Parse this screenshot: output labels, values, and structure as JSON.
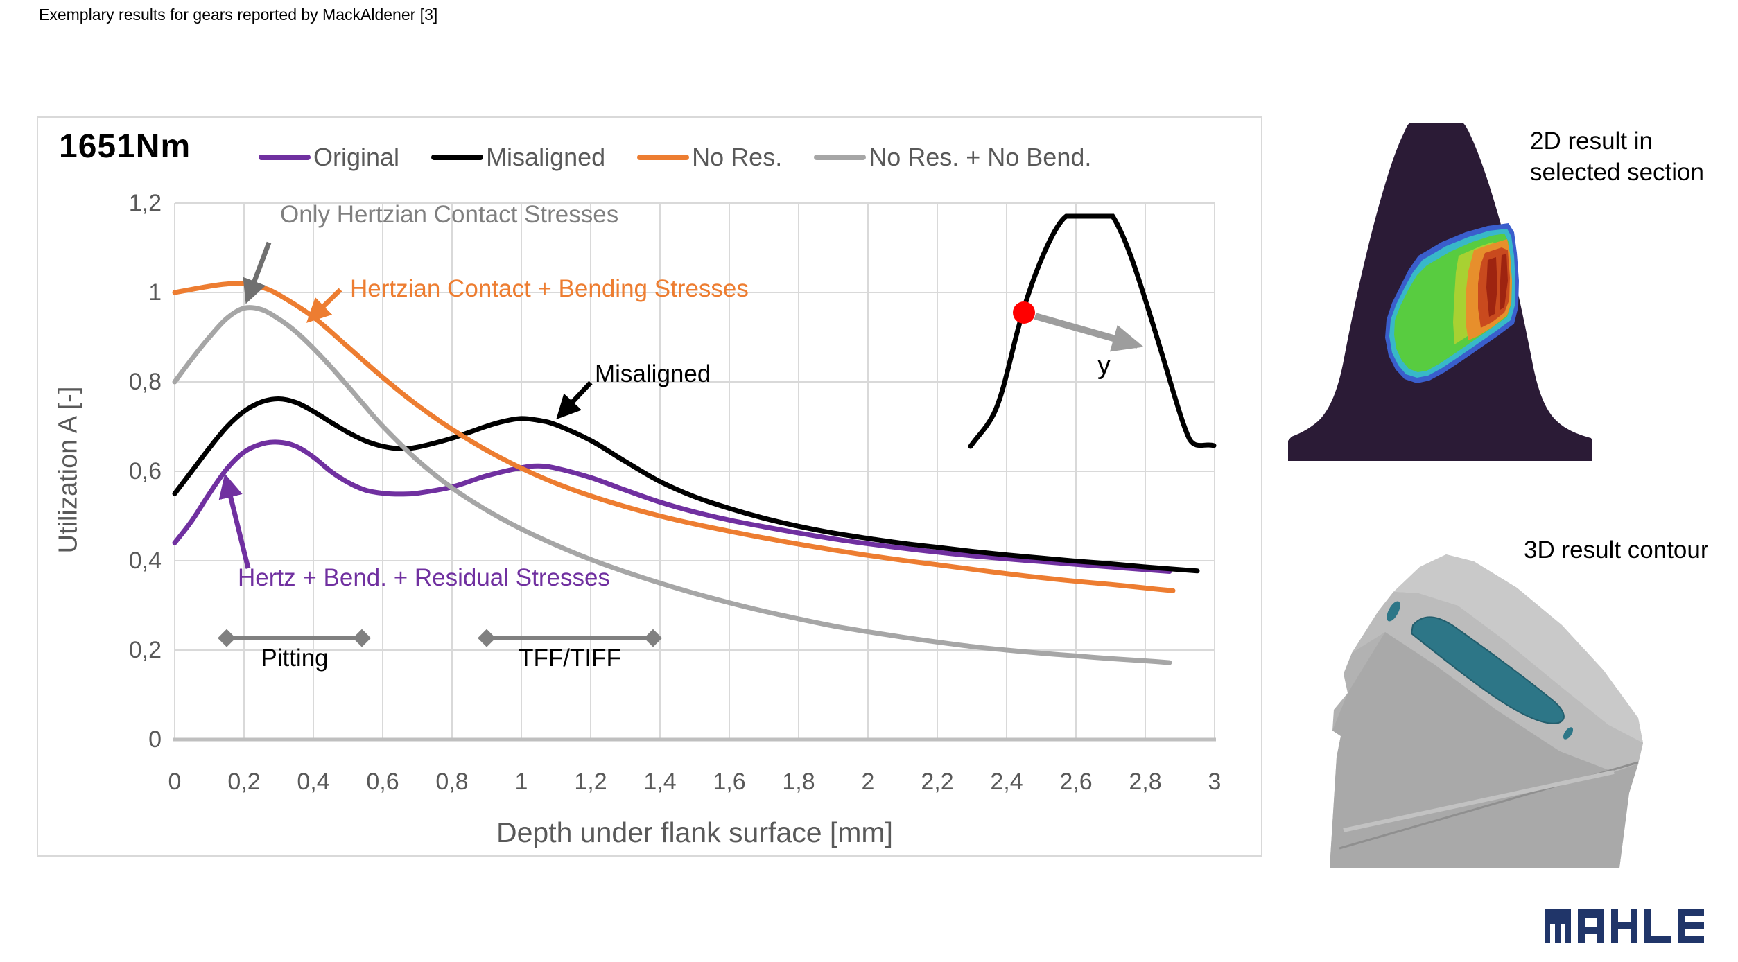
{
  "page": {
    "title": "Exemplary results for gears reported by MackAldener [3]"
  },
  "chart": {
    "title": "1651Nm",
    "legend": [
      {
        "label": "Original",
        "color": "#7030A0"
      },
      {
        "label": "Misaligned",
        "color": "#000000"
      },
      {
        "label": "No Res.",
        "color": "#ED7D31"
      },
      {
        "label": "No Res. + No Bend.",
        "color": "#A6A6A6"
      }
    ],
    "y_axis": {
      "title": "Utilization A [-]",
      "ticks": [
        "1,2",
        "1",
        "0,8",
        "0,6",
        "0,4",
        "0,2",
        "0"
      ],
      "values": [
        1.2,
        1.0,
        0.8,
        0.6,
        0.4,
        0.2,
        0
      ]
    },
    "x_axis": {
      "title": "Depth under flank surface [mm]",
      "ticks": [
        "0",
        "0,2",
        "0,4",
        "0,6",
        "0,8",
        "1",
        "1,2",
        "1,4",
        "1,6",
        "1,8",
        "2",
        "2,2",
        "2,4",
        "2,6",
        "2,8",
        "3"
      ],
      "values": [
        0,
        0.2,
        0.4,
        0.6,
        0.8,
        1,
        1.2,
        1.4,
        1.6,
        1.8,
        2,
        2.2,
        2.4,
        2.6,
        2.8,
        3
      ]
    },
    "annotations": {
      "only_hertzian": "Only Hertzian Contact Stresses",
      "hertzian_bending": "Hertzian Contact + Bending Stresses",
      "misaligned": "Misaligned",
      "hertz_bend_residual": "Hertz + Bend. + Residual Stresses"
    },
    "ranges": [
      {
        "label": "Pitting",
        "from": 0.15,
        "to": 0.54,
        "y": 0.227
      },
      {
        "label": "TFF/TIFF",
        "from": 0.9,
        "to": 1.38,
        "y": 0.227
      }
    ],
    "sketch": {
      "point_label": "y",
      "dot_color": "#FF0000"
    }
  },
  "panels": {
    "p2d": {
      "caption_line1": "2D result in",
      "caption_line2": "selected section"
    },
    "p3d": {
      "caption": "3D result contour"
    }
  },
  "logo": {
    "text": "MAHLE",
    "color": "#203569"
  },
  "chart_data": {
    "type": "line",
    "title": "1651Nm",
    "xlabel": "Depth under flank surface [mm]",
    "ylabel": "Utilization A [-]",
    "xlim": [
      0,
      3
    ],
    "ylim": [
      0,
      1.2
    ],
    "grid": true,
    "legend_position": "top",
    "series": [
      {
        "name": "Original",
        "color": "#7030A0",
        "points": [
          [
            0,
            0.44
          ],
          [
            0.05,
            0.49
          ],
          [
            0.1,
            0.55
          ],
          [
            0.15,
            0.605
          ],
          [
            0.2,
            0.643
          ],
          [
            0.25,
            0.661
          ],
          [
            0.3,
            0.665
          ],
          [
            0.35,
            0.656
          ],
          [
            0.4,
            0.632
          ],
          [
            0.45,
            0.6
          ],
          [
            0.5,
            0.575
          ],
          [
            0.55,
            0.558
          ],
          [
            0.6,
            0.551
          ],
          [
            0.65,
            0.549
          ],
          [
            0.7,
            0.551
          ],
          [
            0.8,
            0.565
          ],
          [
            0.9,
            0.59
          ],
          [
            1.0,
            0.608
          ],
          [
            1.05,
            0.612
          ],
          [
            1.1,
            0.607
          ],
          [
            1.2,
            0.586
          ],
          [
            1.3,
            0.558
          ],
          [
            1.4,
            0.531
          ],
          [
            1.5,
            0.509
          ],
          [
            1.6,
            0.491
          ],
          [
            1.7,
            0.476
          ],
          [
            1.8,
            0.462
          ],
          [
            1.9,
            0.449
          ],
          [
            2.0,
            0.438
          ],
          [
            2.1,
            0.428
          ],
          [
            2.2,
            0.419
          ],
          [
            2.3,
            0.411
          ],
          [
            2.4,
            0.404
          ],
          [
            2.5,
            0.398
          ],
          [
            2.6,
            0.392
          ],
          [
            2.7,
            0.386
          ],
          [
            2.8,
            0.38
          ],
          [
            2.87,
            0.376
          ]
        ]
      },
      {
        "name": "Misaligned",
        "color": "#000000",
        "points": [
          [
            0,
            0.55
          ],
          [
            0.05,
            0.601
          ],
          [
            0.1,
            0.652
          ],
          [
            0.15,
            0.699
          ],
          [
            0.2,
            0.734
          ],
          [
            0.25,
            0.755
          ],
          [
            0.3,
            0.762
          ],
          [
            0.35,
            0.754
          ],
          [
            0.4,
            0.734
          ],
          [
            0.45,
            0.71
          ],
          [
            0.5,
            0.687
          ],
          [
            0.55,
            0.668
          ],
          [
            0.6,
            0.656
          ],
          [
            0.65,
            0.651
          ],
          [
            0.7,
            0.654
          ],
          [
            0.8,
            0.674
          ],
          [
            0.9,
            0.701
          ],
          [
            0.95,
            0.712
          ],
          [
            1.0,
            0.718
          ],
          [
            1.05,
            0.714
          ],
          [
            1.1,
            0.704
          ],
          [
            1.2,
            0.669
          ],
          [
            1.3,
            0.622
          ],
          [
            1.4,
            0.577
          ],
          [
            1.5,
            0.543
          ],
          [
            1.6,
            0.517
          ],
          [
            1.7,
            0.495
          ],
          [
            1.8,
            0.477
          ],
          [
            1.9,
            0.462
          ],
          [
            2.0,
            0.45
          ],
          [
            2.1,
            0.439
          ],
          [
            2.2,
            0.43
          ],
          [
            2.3,
            0.421
          ],
          [
            2.4,
            0.413
          ],
          [
            2.5,
            0.406
          ],
          [
            2.6,
            0.399
          ],
          [
            2.7,
            0.393
          ],
          [
            2.8,
            0.386
          ],
          [
            2.9,
            0.38
          ],
          [
            2.95,
            0.377
          ]
        ]
      },
      {
        "name": "No Res.",
        "color": "#ED7D31",
        "points": [
          [
            0,
            1.0
          ],
          [
            0.1,
            1.014
          ],
          [
            0.15,
            1.019
          ],
          [
            0.2,
            1.02
          ],
          [
            0.25,
            1.012
          ],
          [
            0.3,
            0.995
          ],
          [
            0.4,
            0.945
          ],
          [
            0.5,
            0.878
          ],
          [
            0.6,
            0.81
          ],
          [
            0.7,
            0.748
          ],
          [
            0.8,
            0.694
          ],
          [
            0.9,
            0.647
          ],
          [
            1.0,
            0.607
          ],
          [
            1.1,
            0.573
          ],
          [
            1.2,
            0.545
          ],
          [
            1.3,
            0.521
          ],
          [
            1.4,
            0.5
          ],
          [
            1.5,
            0.482
          ],
          [
            1.6,
            0.466
          ],
          [
            1.7,
            0.451
          ],
          [
            1.8,
            0.437
          ],
          [
            1.9,
            0.424
          ],
          [
            2.0,
            0.412
          ],
          [
            2.1,
            0.401
          ],
          [
            2.2,
            0.391
          ],
          [
            2.3,
            0.381
          ],
          [
            2.4,
            0.371
          ],
          [
            2.5,
            0.362
          ],
          [
            2.6,
            0.354
          ],
          [
            2.7,
            0.347
          ],
          [
            2.8,
            0.339
          ],
          [
            2.88,
            0.333
          ]
        ]
      },
      {
        "name": "No Res. + No Bend.",
        "color": "#A6A6A6",
        "points": [
          [
            0,
            0.8
          ],
          [
            0.05,
            0.852
          ],
          [
            0.1,
            0.9
          ],
          [
            0.15,
            0.942
          ],
          [
            0.2,
            0.965
          ],
          [
            0.25,
            0.962
          ],
          [
            0.3,
            0.941
          ],
          [
            0.35,
            0.912
          ],
          [
            0.4,
            0.875
          ],
          [
            0.45,
            0.834
          ],
          [
            0.5,
            0.79
          ],
          [
            0.55,
            0.745
          ],
          [
            0.6,
            0.701
          ],
          [
            0.7,
            0.625
          ],
          [
            0.8,
            0.563
          ],
          [
            0.9,
            0.513
          ],
          [
            1.0,
            0.471
          ],
          [
            1.1,
            0.435
          ],
          [
            1.2,
            0.403
          ],
          [
            1.3,
            0.375
          ],
          [
            1.4,
            0.35
          ],
          [
            1.5,
            0.327
          ],
          [
            1.6,
            0.306
          ],
          [
            1.7,
            0.287
          ],
          [
            1.8,
            0.27
          ],
          [
            1.9,
            0.254
          ],
          [
            2.0,
            0.241
          ],
          [
            2.1,
            0.229
          ],
          [
            2.2,
            0.218
          ],
          [
            2.3,
            0.208
          ],
          [
            2.4,
            0.2
          ],
          [
            2.5,
            0.193
          ],
          [
            2.6,
            0.187
          ],
          [
            2.7,
            0.181
          ],
          [
            2.8,
            0.176
          ],
          [
            2.87,
            0.172
          ]
        ]
      }
    ]
  }
}
